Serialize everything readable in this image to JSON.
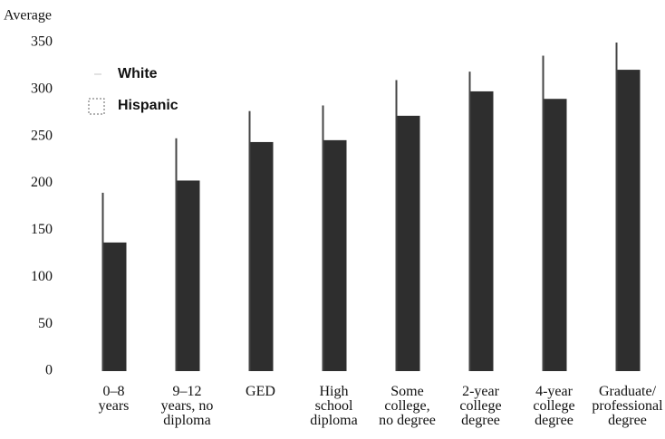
{
  "chart_data": {
    "type": "bar",
    "y_axis_label": "Average",
    "categories": [
      "0–8\nyears",
      "9–12\nyears, no\ndiploma",
      "GED",
      "High\nschool\ndiploma",
      "Some\ncollege,\nno degree",
      "2-year\ncollege\ndegree",
      "4-year\ncollege\ndegree",
      "Graduate/\nprofessional\ndegree"
    ],
    "series": [
      {
        "name": "White",
        "color": "#444444",
        "values": [
          190,
          248,
          277,
          283,
          310,
          319,
          336,
          350
        ]
      },
      {
        "name": "Hispanic",
        "color": "#2e2e2e",
        "values": [
          137,
          203,
          244,
          246,
          272,
          298,
          290,
          321
        ]
      }
    ],
    "ylim": [
      0,
      350
    ],
    "yticks": [
      0,
      50,
      100,
      150,
      200,
      250,
      300,
      350
    ],
    "grid": false,
    "legend": "upper left"
  }
}
